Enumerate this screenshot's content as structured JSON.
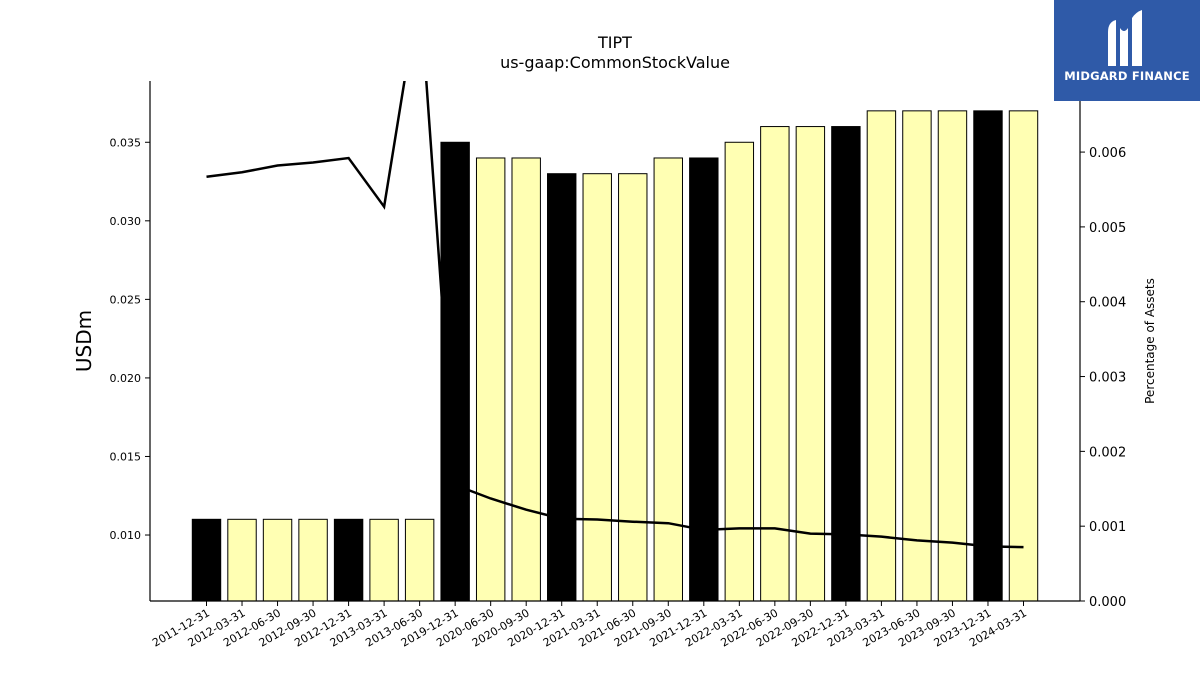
{
  "brand": {
    "name": "MIDGARD FINANCE",
    "color": "#2f5aa8"
  },
  "chart_data": {
    "type": "bar",
    "title": "TIPT",
    "subtitle": "us-gaap:CommonStockValue",
    "ylabel": "USDm",
    "y2label": "Percentage of Assets",
    "ylim": [
      0.0058,
      0.0389
    ],
    "y2lim": [
      0.0,
      0.00695
    ],
    "yticks": [
      "0.010",
      "0.015",
      "0.020",
      "0.025",
      "0.030",
      "0.035"
    ],
    "y2ticks": [
      "0.000",
      "0.001",
      "0.002",
      "0.003",
      "0.004",
      "0.005",
      "0.006"
    ],
    "categories": [
      "2011-12-31",
      "2012-03-31",
      "2012-06-30",
      "2012-09-30",
      "2012-12-31",
      "2013-03-31",
      "2013-06-30",
      "2019-12-31",
      "2020-06-30",
      "2020-09-30",
      "2020-12-31",
      "2021-03-31",
      "2021-06-30",
      "2021-09-30",
      "2021-12-31",
      "2022-03-31",
      "2022-06-30",
      "2022-09-30",
      "2022-12-31",
      "2023-03-31",
      "2023-06-30",
      "2023-09-30",
      "2023-12-31",
      "2024-03-31"
    ],
    "values": [
      0.011,
      0.011,
      0.011,
      0.011,
      0.011,
      0.011,
      0.011,
      0.035,
      0.034,
      0.034,
      0.033,
      0.033,
      0.033,
      0.034,
      0.034,
      0.035,
      0.036,
      0.036,
      0.036,
      0.037,
      0.037,
      0.037,
      0.037,
      0.037
    ],
    "highlight": [
      true,
      false,
      false,
      false,
      true,
      false,
      false,
      true,
      false,
      false,
      true,
      false,
      false,
      false,
      true,
      false,
      false,
      false,
      true,
      false,
      false,
      false,
      true,
      false
    ],
    "line_values": [
      0.00567,
      0.00573,
      0.00582,
      0.00586,
      0.00592,
      0.00527,
      0.0082,
      0.00155,
      0.00137,
      0.00122,
      0.0011,
      0.00109,
      0.00106,
      0.00104,
      0.00095,
      0.00097,
      0.00097,
      0.0009,
      0.00089,
      0.00086,
      0.00081,
      0.00078,
      0.00073,
      0.00072
    ],
    "colors": {
      "bar": "#ffffb3",
      "bar_highlight": "#000000",
      "line": "#000000"
    },
    "grid": false
  }
}
